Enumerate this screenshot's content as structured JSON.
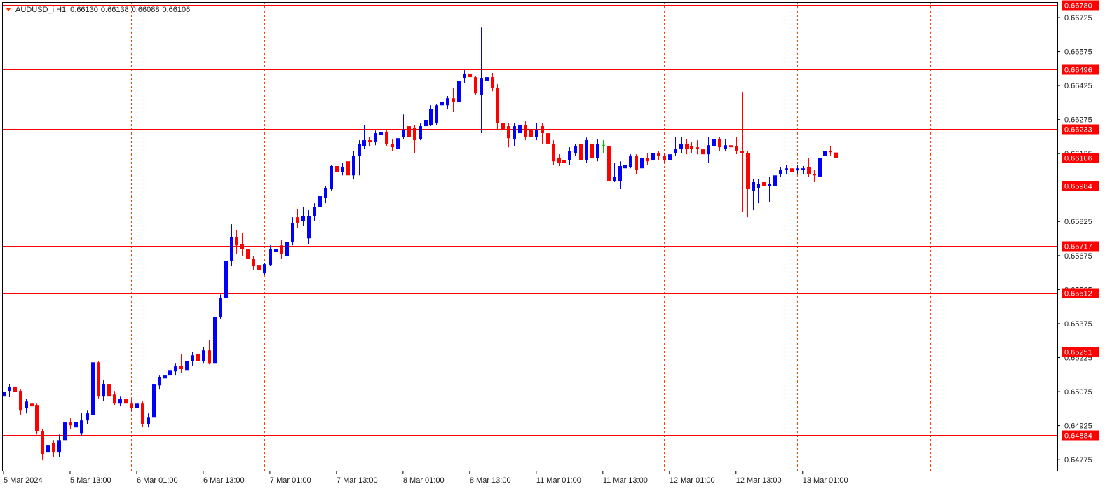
{
  "chart_data": {
    "type": "candlestick",
    "title": "AUDUSD_i,H1",
    "ohlc_labels": [
      "0.66130",
      "0.66138",
      "0.66088",
      "0.66106"
    ],
    "up_color": "#0000ff",
    "down_color": "#ff0000",
    "doji_color": "#00c000",
    "level_color": "#ff0000",
    "vgrid_color": "#ff4500",
    "ylim": [
      0.64726,
      0.66793
    ],
    "yticks": [
      0.66725,
      0.66575,
      0.66425,
      0.66275,
      0.66125,
      0.65825,
      0.65675,
      0.65525,
      0.65375,
      0.65225,
      0.65075,
      0.64925,
      0.64775
    ],
    "levels": [
      {
        "value": 0.6678,
        "label": "0.66780"
      },
      0.66496,
      0.66233,
      0.65984,
      0.65717,
      0.65512,
      0.65251,
      0.64884
    ],
    "last_price": 0.66106,
    "categories": [
      "5 Mar 2024",
      null,
      null,
      null,
      null,
      null,
      null,
      null,
      null,
      null,
      null,
      null,
      "5 Mar 13:00",
      null,
      null,
      null,
      null,
      null,
      null,
      null,
      null,
      null,
      null,
      null,
      "6 Mar 01:00",
      null,
      null,
      null,
      null,
      null,
      null,
      null,
      null,
      null,
      null,
      null,
      "6 Mar 13:00",
      null,
      null,
      null,
      null,
      null,
      null,
      null,
      null,
      null,
      null,
      null,
      "7 Mar 01:00",
      null,
      null,
      null,
      null,
      null,
      null,
      null,
      null,
      null,
      null,
      null,
      "7 Mar 13:00",
      null,
      null,
      null,
      null,
      null,
      null,
      null,
      null,
      null,
      null,
      null,
      "8 Mar 01:00",
      null,
      null,
      null,
      null,
      null,
      null,
      null,
      null,
      null,
      null,
      null,
      "8 Mar 13:00",
      null,
      null,
      null,
      null,
      null,
      null,
      null,
      null,
      null,
      null,
      null,
      "11 Mar 01:00",
      null,
      null,
      null,
      null,
      null,
      null,
      null,
      null,
      null,
      null,
      null,
      "11 Mar 13:00",
      null,
      null,
      null,
      null,
      null,
      null,
      null,
      null,
      null,
      null,
      null,
      "12 Mar 01:00",
      null,
      null,
      null,
      null,
      null,
      null,
      null,
      null,
      null,
      null,
      null,
      "12 Mar 13:00",
      null,
      null,
      null,
      null,
      null,
      null,
      null,
      null,
      null,
      null,
      null,
      "13 Mar 01:00",
      null,
      null,
      null,
      null,
      null,
      null
    ],
    "candles": [
      [
        0.65056,
        0.65087,
        0.65025,
        0.65072
      ],
      [
        0.65078,
        0.65109,
        0.65053,
        0.65096
      ],
      [
        0.65096,
        0.65109,
        0.65056,
        0.65072
      ],
      [
        0.65078,
        0.65087,
        0.64973,
        0.64994
      ],
      [
        0.65001,
        0.65041,
        0.64979,
        0.65031
      ],
      [
        0.65025,
        0.65035,
        0.64994,
        0.6501
      ],
      [
        0.65016,
        0.65025,
        0.64886,
        0.64902
      ],
      [
        0.64902,
        0.64911,
        0.64772,
        0.648
      ],
      [
        0.64809,
        0.64855,
        0.64787,
        0.6484
      ],
      [
        0.64849,
        0.64861,
        0.64787,
        0.64809
      ],
      [
        0.64809,
        0.64886,
        0.64787,
        0.64861
      ],
      [
        0.64861,
        0.64963,
        0.64849,
        0.64939
      ],
      [
        0.64939,
        0.64957,
        0.64911,
        0.64926
      ],
      [
        0.64917,
        0.64954,
        0.64886,
        0.64942
      ],
      [
        0.64892,
        0.64979,
        0.6488,
        0.64948
      ],
      [
        0.64948,
        0.64994,
        0.64933,
        0.64979
      ],
      [
        0.64973,
        0.65211,
        0.64963,
        0.65204
      ],
      [
        0.65204,
        0.65211,
        0.65041,
        0.65056
      ],
      [
        0.65056,
        0.65124,
        0.65035,
        0.65109
      ],
      [
        0.65109,
        0.65127,
        0.65041,
        0.65056
      ],
      [
        0.65062,
        0.65078,
        0.65016,
        0.65025
      ],
      [
        0.65025,
        0.65056,
        0.6501,
        0.65041
      ],
      [
        0.65041,
        0.65056,
        0.65004,
        0.65025
      ],
      [
        0.65025,
        0.65041,
        0.64988,
        0.65001
      ],
      [
        0.65001,
        0.65041,
        0.64985,
        0.65025
      ],
      [
        0.65025,
        0.65031,
        0.64917,
        0.64933
      ],
      [
        0.64933,
        0.64979,
        0.64917,
        0.64963
      ],
      [
        0.64963,
        0.65118,
        0.64954,
        0.65109
      ],
      [
        0.65102,
        0.65149,
        0.65087,
        0.6514
      ],
      [
        0.65133,
        0.65164,
        0.65118,
        0.65149
      ],
      [
        0.65149,
        0.65189,
        0.65133,
        0.6517
      ],
      [
        0.65164,
        0.65201,
        0.65149,
        0.65186
      ],
      [
        0.65189,
        0.65242,
        0.65158,
        0.65174
      ],
      [
        0.6517,
        0.65226,
        0.65118,
        0.65211
      ],
      [
        0.65211,
        0.65251,
        0.65189,
        0.65235
      ],
      [
        0.65242,
        0.65257,
        0.65195,
        0.65211
      ],
      [
        0.65211,
        0.65272,
        0.65201,
        0.65257
      ],
      [
        0.65257,
        0.65303,
        0.65195,
        0.65201
      ],
      [
        0.65201,
        0.65411,
        0.65195,
        0.65405
      ],
      [
        0.65405,
        0.65504,
        0.65396,
        0.65489
      ],
      [
        0.65489,
        0.65665,
        0.65479,
        0.65653
      ],
      [
        0.65653,
        0.65813,
        0.65628,
        0.65758
      ],
      [
        0.65758,
        0.65788,
        0.65683,
        0.6572
      ],
      [
        0.65727,
        0.65776,
        0.65674,
        0.65705
      ],
      [
        0.65705,
        0.6572,
        0.65628,
        0.65659
      ],
      [
        0.65659,
        0.65674,
        0.65612,
        0.65628
      ],
      [
        0.65634,
        0.65653,
        0.65597,
        0.65612
      ],
      [
        0.65597,
        0.65643,
        0.65588,
        0.65637
      ],
      [
        0.65634,
        0.6572,
        0.65628,
        0.65705
      ],
      [
        0.6569,
        0.6572,
        0.65653,
        0.65705
      ],
      [
        0.6572,
        0.65745,
        0.65659,
        0.65683
      ],
      [
        0.65674,
        0.65751,
        0.65628,
        0.65736
      ],
      [
        0.65736,
        0.65844,
        0.6572,
        0.65819
      ],
      [
        0.65844,
        0.65881,
        0.65798,
        0.65819
      ],
      [
        0.65829,
        0.6589,
        0.65807,
        0.6585
      ],
      [
        0.65751,
        0.65875,
        0.65727,
        0.6585
      ],
      [
        0.6585,
        0.65906,
        0.65829,
        0.6589
      ],
      [
        0.6589,
        0.65952,
        0.6585,
        0.65937
      ],
      [
        0.65931,
        0.65983,
        0.65906,
        0.65974
      ],
      [
        0.65968,
        0.66076,
        0.65962,
        0.6607
      ],
      [
        0.6607,
        0.66085,
        0.66029,
        0.66045
      ],
      [
        0.66045,
        0.66085,
        0.66029,
        0.66067
      ],
      [
        0.66091,
        0.66184,
        0.66014,
        0.66029
      ],
      [
        0.66029,
        0.66138,
        0.66011,
        0.66116
      ],
      [
        0.66116,
        0.66184,
        0.66029,
        0.66169
      ],
      [
        0.66159,
        0.66252,
        0.66147,
        0.66184
      ],
      [
        0.66184,
        0.66199,
        0.66159,
        0.66175
      ],
      [
        0.66175,
        0.66227,
        0.66162,
        0.66215
      ],
      [
        0.66209,
        0.66237,
        0.66199,
        0.66221
      ],
      [
        0.66221,
        0.6623,
        0.66159,
        0.66169
      ],
      [
        0.66169,
        0.6619,
        0.66138,
        0.66153
      ],
      [
        0.66147,
        0.66199,
        0.66138,
        0.66193
      ],
      [
        0.66199,
        0.66298,
        0.6619,
        0.6623
      ],
      [
        0.66246,
        0.66261,
        0.66169,
        0.66199
      ],
      [
        0.6624,
        0.66252,
        0.66128,
        0.66184
      ],
      [
        0.6619,
        0.66258,
        0.66184,
        0.66246
      ],
      [
        0.66246,
        0.66277,
        0.66215,
        0.66271
      ],
      [
        0.66252,
        0.66338,
        0.66246,
        0.66323
      ],
      [
        0.66261,
        0.66345,
        0.66252,
        0.66338
      ],
      [
        0.66338,
        0.66363,
        0.66314,
        0.66354
      ],
      [
        0.66338,
        0.66379,
        0.66323,
        0.66369
      ],
      [
        0.66369,
        0.66416,
        0.66308,
        0.66354
      ],
      [
        0.66354,
        0.66456,
        0.66338,
        0.66447
      ],
      [
        0.66456,
        0.66493,
        0.66437,
        0.66478
      ],
      [
        0.66478,
        0.6649,
        0.66437,
        0.66462
      ],
      [
        0.66462,
        0.66468,
        0.66382,
        0.66391
      ],
      [
        0.66385,
        0.66681,
        0.66215,
        0.66456
      ],
      [
        0.66447,
        0.66536,
        0.664,
        0.66462
      ],
      [
        0.66462,
        0.66481,
        0.664,
        0.66416
      ],
      [
        0.66416,
        0.66431,
        0.6623,
        0.66261
      ],
      [
        0.66261,
        0.66338,
        0.66215,
        0.6623
      ],
      [
        0.66246,
        0.66261,
        0.66153,
        0.66193
      ],
      [
        0.6619,
        0.66261,
        0.66159,
        0.66246
      ],
      [
        0.66215,
        0.66261,
        0.66199,
        0.66252
      ],
      [
        0.66252,
        0.66267,
        0.66184,
        0.66199
      ],
      [
        0.6623,
        0.66246,
        0.66184,
        0.66199
      ],
      [
        0.66199,
        0.66261,
        0.66184,
        0.6623
      ],
      [
        0.66246,
        0.66261,
        0.66169,
        0.66215
      ],
      [
        0.66215,
        0.66261,
        0.66153,
        0.66169
      ],
      [
        0.66169,
        0.66184,
        0.66076,
        0.66091
      ],
      [
        0.66107,
        0.66122,
        0.6607,
        0.66085
      ],
      [
        0.66097,
        0.66122,
        0.6606,
        0.66085
      ],
      [
        0.66097,
        0.66153,
        0.66076,
        0.66138
      ],
      [
        0.66128,
        0.66169,
        0.66116,
        0.66159
      ],
      [
        0.66169,
        0.66184,
        0.6606,
        0.66097
      ],
      [
        0.66097,
        0.66196,
        0.66085,
        0.66184
      ],
      [
        0.66169,
        0.66206,
        0.66097,
        0.66107
      ],
      [
        0.66107,
        0.6619,
        0.66091,
        0.66169
      ],
      [
        0.66162,
        0.66184,
        0.66128,
        0.66162
      ],
      [
        0.66159,
        0.66169,
        0.65992,
        0.66005
      ],
      [
        0.66005,
        0.66085,
        0.65999,
        0.66023
      ],
      [
        0.66005,
        0.66091,
        0.65968,
        0.6607
      ],
      [
        0.6606,
        0.66107,
        0.66045,
        0.66076
      ],
      [
        0.66067,
        0.66122,
        0.6606,
        0.66113
      ],
      [
        0.66113,
        0.66122,
        0.66036,
        0.66054
      ],
      [
        0.6606,
        0.66122,
        0.66045,
        0.66107
      ],
      [
        0.66107,
        0.66128,
        0.66076,
        0.66091
      ],
      [
        0.66097,
        0.66138,
        0.66085,
        0.66128
      ],
      [
        0.66128,
        0.66138,
        0.66097,
        0.66116
      ],
      [
        0.66116,
        0.66128,
        0.66085,
        0.66097
      ],
      [
        0.66097,
        0.66138,
        0.66085,
        0.66122
      ],
      [
        0.66128,
        0.66199,
        0.66116,
        0.66147
      ],
      [
        0.66147,
        0.66199,
        0.66128,
        0.66169
      ],
      [
        0.66169,
        0.6619,
        0.66122,
        0.66144
      ],
      [
        0.66159,
        0.66178,
        0.66128,
        0.66147
      ],
      [
        0.66153,
        0.66184,
        0.66122,
        0.66144
      ],
      [
        0.66144,
        0.6619,
        0.66107,
        0.66122
      ],
      [
        0.66122,
        0.66199,
        0.66085,
        0.66162
      ],
      [
        0.66159,
        0.66206,
        0.66138,
        0.6619
      ],
      [
        0.6619,
        0.66199,
        0.66138,
        0.66153
      ],
      [
        0.66147,
        0.6619,
        0.66135,
        0.66162
      ],
      [
        0.66162,
        0.66184,
        0.66138,
        0.66153
      ],
      [
        0.66159,
        0.66199,
        0.66122,
        0.66138
      ],
      [
        0.66138,
        0.66394,
        0.65869,
        0.66128
      ],
      [
        0.66128,
        0.66138,
        0.65844,
        0.65968
      ],
      [
        0.65962,
        0.66014,
        0.65875,
        0.65999
      ],
      [
        0.65974,
        0.66014,
        0.65906,
        0.65992
      ],
      [
        0.65999,
        0.66014,
        0.65962,
        0.65983
      ],
      [
        0.65983,
        0.66023,
        0.65912,
        0.65992
      ],
      [
        0.65983,
        0.66045,
        0.65968,
        0.66029
      ],
      [
        0.66036,
        0.66067,
        0.66023,
        0.66054
      ],
      [
        0.66054,
        0.66076,
        0.66036,
        0.6606
      ],
      [
        0.6606,
        0.66067,
        0.66023,
        0.66045
      ],
      [
        0.66051,
        0.66076,
        0.66036,
        0.6606
      ],
      [
        0.66054,
        0.6607,
        0.66036,
        0.6606
      ],
      [
        0.66067,
        0.66107,
        0.66023,
        0.66036
      ],
      [
        0.66036,
        0.66054,
        0.65999,
        0.66029
      ],
      [
        0.66023,
        0.66116,
        0.66014,
        0.66107
      ],
      [
        0.66116,
        0.66169,
        0.66097,
        0.66138
      ],
      [
        0.66138,
        0.66159,
        0.66116,
        0.66131
      ],
      [
        0.6613,
        0.66138,
        0.66088,
        0.66106
      ]
    ]
  }
}
